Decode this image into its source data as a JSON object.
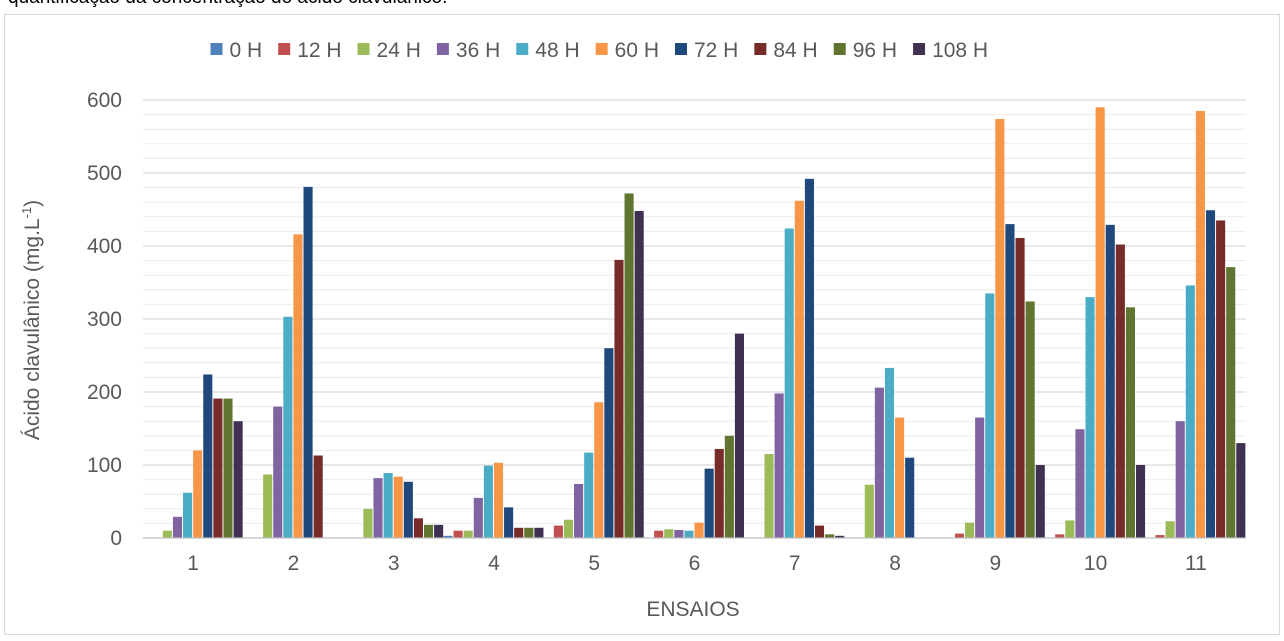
{
  "caption": "quantificação da concentração do ácido clavulânico.",
  "chart_data": {
    "type": "bar",
    "title": "",
    "xlabel": "ENSAIOS",
    "ylabel_main": "Ácido clavulânico (mg.L",
    "ylabel_sup": "-1",
    "ylabel_end": ")",
    "ylim": [
      0,
      600
    ],
    "yticks": [
      0,
      100,
      200,
      300,
      400,
      500,
      600
    ],
    "grid": true,
    "legend_position": "top",
    "categories": [
      "1",
      "2",
      "3",
      "4",
      "5",
      "6",
      "7",
      "8",
      "9",
      "10",
      "11"
    ],
    "series": [
      {
        "name": "0 H",
        "color": "#4f81bd",
        "values": [
          0,
          0,
          0,
          3,
          0,
          0,
          0,
          0,
          0,
          0,
          0
        ]
      },
      {
        "name": "12 H",
        "color": "#c0504d",
        "values": [
          0,
          0,
          0,
          10,
          17,
          10,
          0,
          0,
          6,
          5,
          4
        ]
      },
      {
        "name": "24 H",
        "color": "#9bbb59",
        "values": [
          10,
          87,
          40,
          10,
          25,
          12,
          115,
          73,
          21,
          24,
          23
        ]
      },
      {
        "name": "36 H",
        "color": "#8064a2",
        "values": [
          29,
          180,
          82,
          55,
          74,
          11,
          198,
          206,
          165,
          149,
          160
        ]
      },
      {
        "name": "48 H",
        "color": "#4bacc6",
        "values": [
          62,
          303,
          89,
          99,
          117,
          10,
          424,
          233,
          335,
          330,
          346
        ]
      },
      {
        "name": "60 H",
        "color": "#f79646",
        "values": [
          120,
          416,
          84,
          103,
          186,
          21,
          462,
          165,
          574,
          590,
          585
        ]
      },
      {
        "name": "72 H",
        "color": "#1f497d",
        "values": [
          224,
          481,
          77,
          42,
          260,
          95,
          492,
          110,
          430,
          429,
          449
        ]
      },
      {
        "name": "84 H",
        "color": "#772c2a",
        "values": [
          191,
          113,
          27,
          14,
          381,
          122,
          17,
          0,
          411,
          402,
          435
        ]
      },
      {
        "name": "96 H",
        "color": "#5f7530",
        "values": [
          191,
          0,
          18,
          14,
          472,
          140,
          5,
          0,
          324,
          316,
          371
        ]
      },
      {
        "name": "108 H",
        "color": "#403152",
        "values": [
          160,
          0,
          18,
          14,
          448,
          280,
          3,
          0,
          100,
          100,
          130
        ]
      }
    ]
  }
}
